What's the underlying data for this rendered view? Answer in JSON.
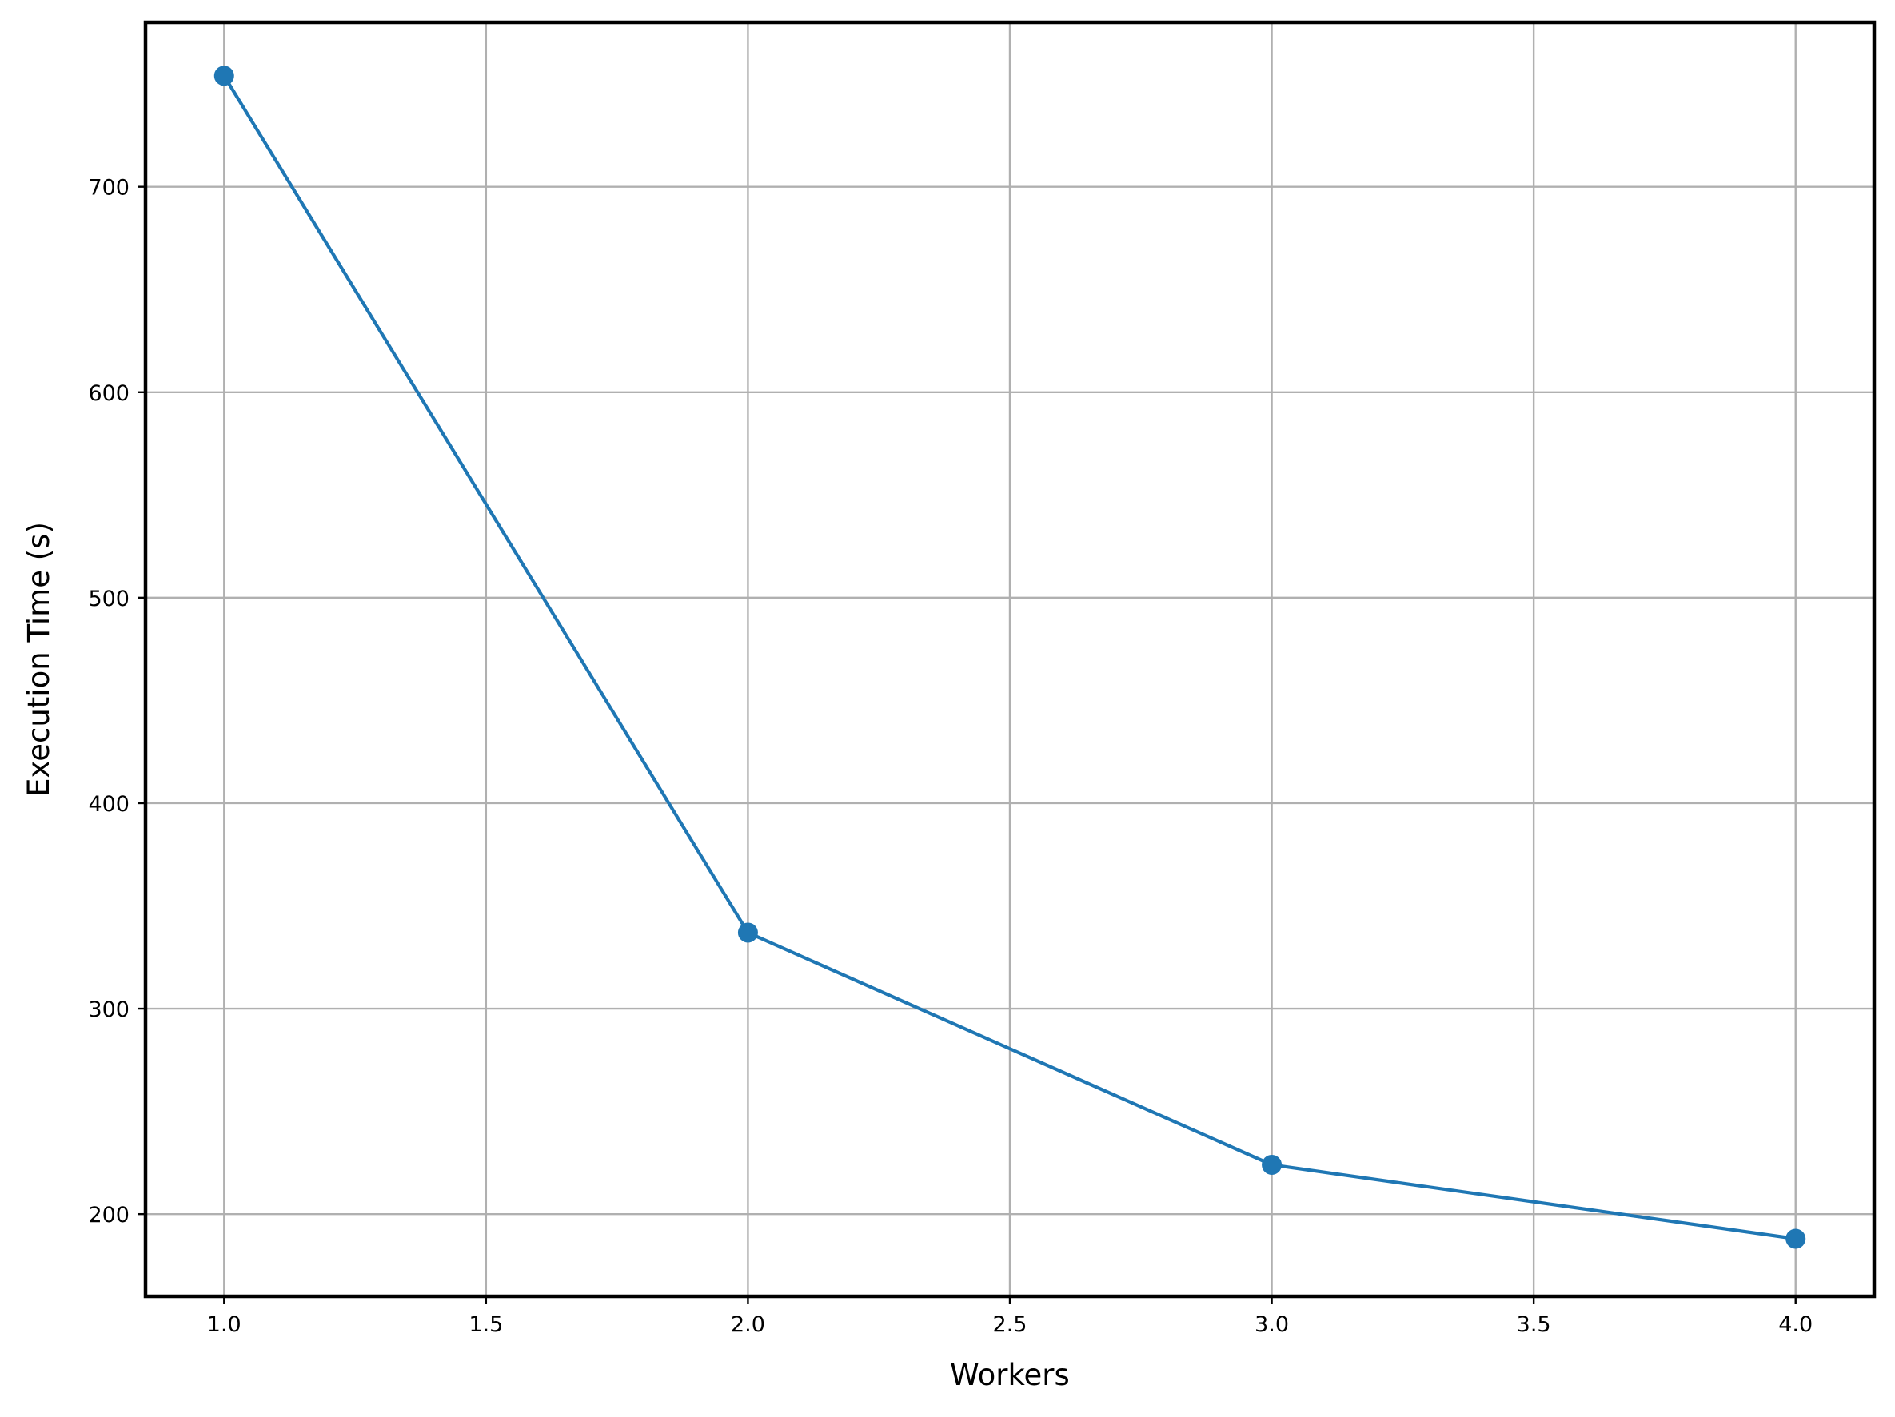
{
  "chart_data": {
    "type": "line",
    "title": "",
    "xlabel": "Workers",
    "ylabel": "Execution Time (s)",
    "xlim": [
      0.85,
      4.15
    ],
    "ylim": [
      160,
      780
    ],
    "grid": true,
    "x_ticks": [
      1.0,
      1.5,
      2.0,
      2.5,
      3.0,
      3.5,
      4.0
    ],
    "x_tick_labels": [
      "1.0",
      "1.5",
      "2.0",
      "2.5",
      "3.0",
      "3.5",
      "4.0"
    ],
    "y_ticks": [
      200,
      300,
      400,
      500,
      600,
      700
    ],
    "y_tick_labels": [
      "200",
      "300",
      "400",
      "500",
      "600",
      "700"
    ],
    "series": [
      {
        "x": [
          1,
          2,
          3,
          4
        ],
        "y": [
          754,
          337,
          224,
          188
        ],
        "color": "#1f77b4",
        "marker": "circle"
      }
    ]
  }
}
